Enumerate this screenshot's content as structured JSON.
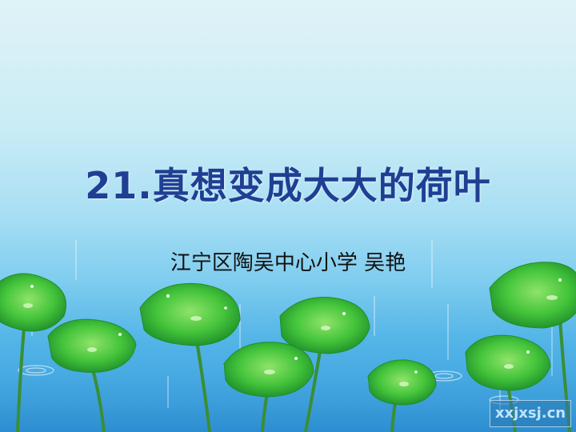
{
  "slide": {
    "title": "21.真想变成大大的荷叶",
    "subtitle": "江宁区陶吴中心小学 吴艳",
    "watermark": "xxjxsj.cn"
  },
  "colors": {
    "title": "#1f3f93",
    "subtitle": "#111111",
    "leaf": "#3fc23a",
    "leaf_dark": "#1f8f2a",
    "stem": "#3a8e34",
    "water": "#2f97d8"
  },
  "icons": [
    "lotus-leaf-icon",
    "water-ripple-icon",
    "rain-streak-icon"
  ]
}
